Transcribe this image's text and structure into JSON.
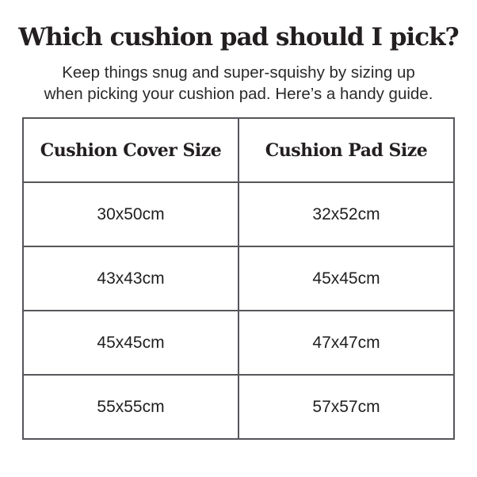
{
  "page": {
    "title": "Which cushion pad should I pick?",
    "subtitle_line1": "Keep things snug and super-squishy by sizing up",
    "subtitle_line2": "when picking your cushion pad. Here’s a handy guide."
  },
  "table": {
    "headers": {
      "cover": "Cushion Cover Size",
      "pad": "Cushion Pad Size"
    },
    "rows": [
      {
        "cover": "30x50cm",
        "pad": "32x52cm"
      },
      {
        "cover": "43x43cm",
        "pad": "45x45cm"
      },
      {
        "cover": "45x45cm",
        "pad": "47x47cm"
      },
      {
        "cover": "55x55cm",
        "pad": "57x57cm"
      }
    ]
  },
  "colors": {
    "background": "#ffffff",
    "text": "#231f20",
    "table_border": "#55565a"
  }
}
